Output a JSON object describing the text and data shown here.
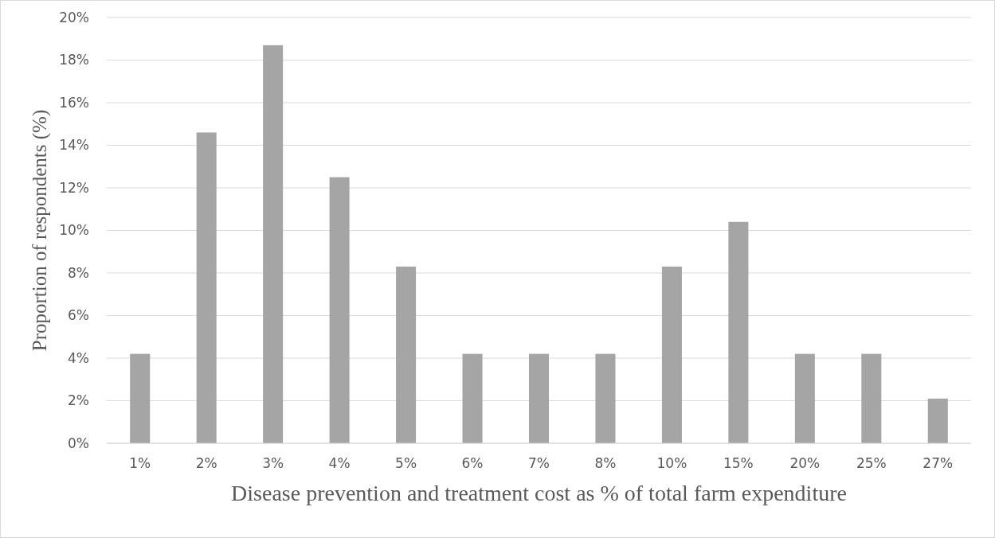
{
  "chart_data": {
    "type": "bar",
    "xlabel": "Disease prevention and treatment cost as % of total farm expenditure",
    "ylabel": "Proportion of respondents (%)",
    "categories": [
      "1%",
      "2%",
      "3%",
      "4%",
      "5%",
      "6%",
      "7%",
      "8%",
      "10%",
      "15%",
      "20%",
      "25%",
      "27%"
    ],
    "values": [
      4.2,
      14.6,
      18.7,
      12.5,
      8.3,
      4.2,
      4.2,
      4.2,
      8.3,
      10.4,
      4.2,
      4.2,
      2.1
    ],
    "color": "#a5a5a5",
    "ylim": [
      0,
      20
    ],
    "yticks": [
      {
        "value": 0,
        "label": "0%"
      },
      {
        "value": 2,
        "label": "2%"
      },
      {
        "value": 4,
        "label": "4%"
      },
      {
        "value": 6,
        "label": "6%"
      },
      {
        "value": 8,
        "label": "8%"
      },
      {
        "value": 10,
        "label": "10%"
      },
      {
        "value": 12,
        "label": "12%"
      },
      {
        "value": 14,
        "label": "14%"
      },
      {
        "value": 16,
        "label": "16%"
      },
      {
        "value": 18,
        "label": "18%"
      },
      {
        "value": 20,
        "label": "20%"
      }
    ],
    "grid": "y"
  }
}
